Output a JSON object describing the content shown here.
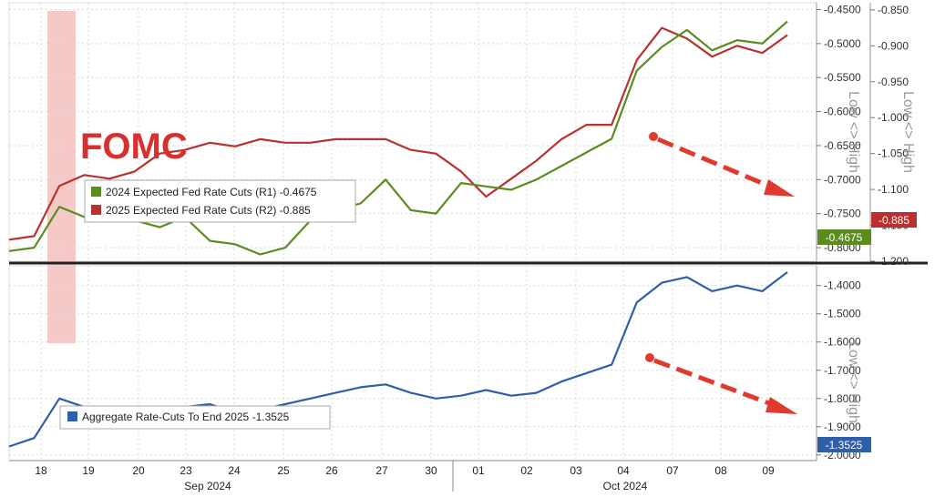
{
  "chart_data": [
    {
      "type": "line",
      "title": "",
      "annotation": "FOMC",
      "x": [
        "18",
        "18",
        "19",
        "19",
        "20",
        "20",
        "23",
        "23",
        "24",
        "24",
        "25",
        "25",
        "26",
        "26",
        "27",
        "27",
        "30",
        "30",
        "01",
        "01",
        "02",
        "02",
        "03",
        "03",
        "04",
        "04",
        "07",
        "07",
        "08",
        "08",
        "09",
        "09"
      ],
      "series": [
        {
          "name": "2024 Expected Fed Rate Cuts (R1)",
          "axis": "right-1",
          "color": "#5b8c1e",
          "last_value": "-0.4675",
          "values": [
            -0.805,
            -0.8,
            -0.74,
            -0.755,
            -0.75,
            -0.76,
            -0.77,
            -0.755,
            -0.79,
            -0.795,
            -0.81,
            -0.8,
            -0.76,
            -0.745,
            -0.735,
            -0.7,
            -0.745,
            -0.75,
            -0.705,
            -0.71,
            -0.715,
            -0.7,
            -0.68,
            -0.66,
            -0.64,
            -0.54,
            -0.505,
            -0.48,
            -0.51,
            -0.495,
            -0.5,
            -0.4675
          ]
        },
        {
          "name": "2025 Expected Fed Rate Cuts (R2)",
          "axis": "right-2",
          "color": "#b8302f",
          "last_value": "-0.885",
          "values": [
            -1.17,
            -1.165,
            -1.095,
            -1.08,
            -1.085,
            -1.075,
            -1.05,
            -1.045,
            -1.035,
            -1.04,
            -1.03,
            -1.035,
            -1.035,
            -1.03,
            -1.03,
            -1.03,
            -1.045,
            -1.05,
            -1.075,
            -1.11,
            -1.085,
            -1.06,
            -1.03,
            -1.01,
            -1.01,
            -0.92,
            -0.875,
            -0.89,
            -0.915,
            -0.9,
            -0.91,
            -0.885
          ]
        }
      ],
      "right_axis_1": {
        "ticks": [
          "-0.8000",
          "-0.7500",
          "-0.7000",
          "-0.6500",
          "-0.6000",
          "-0.5500",
          "-0.5000",
          "-0.4500"
        ],
        "range": [
          -0.82,
          -0.44
        ],
        "title": "Low <> High"
      },
      "right_axis_2": {
        "ticks": [
          "-1.200",
          "-1.150",
          "-1.100",
          "-1.050",
          "-1.000",
          "-0.950",
          "-0.900",
          "-0.850"
        ],
        "range": [
          -1.2,
          -0.84
        ],
        "title": "Low <> High"
      },
      "legend": [
        {
          "label": "2024 Expected Fed Rate Cuts (R1) -0.4675",
          "color": "#5b8c1e"
        },
        {
          "label": "2025 Expected Fed Rate Cuts (R2) -0.885",
          "color": "#b8302f"
        }
      ],
      "legend_position": "left"
    },
    {
      "type": "line",
      "title": "",
      "x": [
        "18",
        "18",
        "19",
        "19",
        "20",
        "20",
        "23",
        "23",
        "24",
        "24",
        "25",
        "25",
        "26",
        "26",
        "27",
        "27",
        "30",
        "30",
        "01",
        "01",
        "02",
        "02",
        "03",
        "03",
        "04",
        "04",
        "07",
        "07",
        "08",
        "08",
        "09",
        "09"
      ],
      "series": [
        {
          "name": "Aggregate Rate-Cuts To End 2025",
          "axis": "right",
          "color": "#2f5fa8",
          "last_value": "-1.3525",
          "values": [
            -1.97,
            -1.94,
            -1.8,
            -1.83,
            -1.84,
            -1.86,
            -1.84,
            -1.83,
            -1.82,
            -1.85,
            -1.84,
            -1.82,
            -1.8,
            -1.78,
            -1.76,
            -1.75,
            -1.78,
            -1.8,
            -1.79,
            -1.77,
            -1.79,
            -1.78,
            -1.74,
            -1.71,
            -1.68,
            -1.46,
            -1.39,
            -1.37,
            -1.42,
            -1.4,
            -1.42,
            -1.3525
          ]
        }
      ],
      "right_axis": {
        "ticks": [
          "-2.0000",
          "-1.9000",
          "-1.8000",
          "-1.7000",
          "-1.6000",
          "-1.5000",
          "-1.4000"
        ],
        "range": [
          -2.02,
          -1.33
        ],
        "title": "Low <> High"
      },
      "legend": [
        {
          "label": "Aggregate Rate-Cuts To End 2025 -1.3525",
          "color": "#2f5fa8"
        }
      ],
      "legend_position": "bottom-left"
    }
  ],
  "x_axis": {
    "day_labels": [
      "18",
      "19",
      "20",
      "23",
      "24",
      "25",
      "26",
      "27",
      "30",
      "01",
      "02",
      "03",
      "04",
      "07",
      "08",
      "09"
    ],
    "months": [
      {
        "label": "Sep 2024"
      },
      {
        "label": "Oct 2024"
      }
    ]
  },
  "colors": {
    "green": "#5b8c1e",
    "red": "#b8302f",
    "blue": "#2f5fa8",
    "arrow": "#e03a2e",
    "fomc_band": "#f6c9c9"
  }
}
